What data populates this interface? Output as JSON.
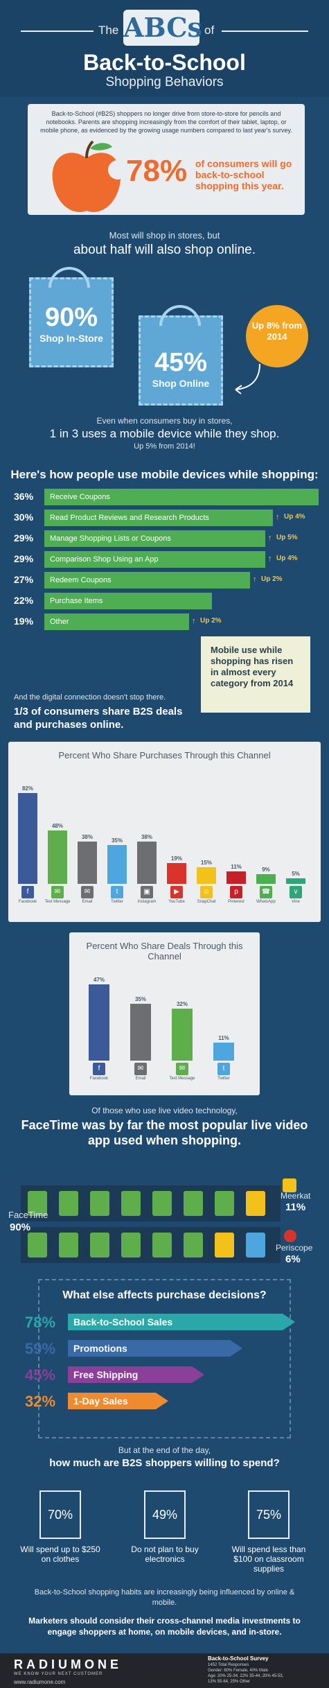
{
  "header": {
    "the": "The",
    "abcs": "ABCs",
    "of": "of",
    "title": "Back-to-School",
    "subtitle": "Shopping Behaviors"
  },
  "intro": {
    "text": "Back-to-School (#B2S) shoppers no longer drive from store-to-store for pencils and notebooks. Parents are shopping increasingly from the comfort of their tablet, laptop, or mobile phone, as evidenced by the growing usage numbers compared to last year's survey.",
    "stat": "78%",
    "stat_text": "of consumers will go back-to-school shopping this year."
  },
  "online": {
    "line1": "Most will shop in stores, but",
    "line2": "about half will also shop online.",
    "instore_pct": "90%",
    "instore_lbl": "Shop In-Store",
    "online_pct": "45%",
    "online_lbl": "Shop Online",
    "badge": "Up 8% from 2014"
  },
  "mobile_intro": {
    "line1": "Even when consumers buy in stores,",
    "line2": "1 in 3 uses a mobile device while they shop.",
    "line3": "Up 5% from 2014!"
  },
  "mobile_heading": "Here's how people use mobile devices while shopping:",
  "mobile_uses": [
    {
      "pct": "36%",
      "label": "Receive Coupons",
      "value": 36,
      "up": ""
    },
    {
      "pct": "30%",
      "label": "Read Product Reviews and Research Products",
      "value": 30,
      "up": "Up 4%"
    },
    {
      "pct": "29%",
      "label": "Manage Shopping Lists or Coupons",
      "value": 29,
      "up": "Up 5%"
    },
    {
      "pct": "29%",
      "label": "Comparison Shop Using an App",
      "value": 29,
      "up": "Up 4%"
    },
    {
      "pct": "27%",
      "label": "Redeem Coupons",
      "value": 27,
      "up": "Up 2%"
    },
    {
      "pct": "22%",
      "label": "Purchase Items",
      "value": 22,
      "up": ""
    },
    {
      "pct": "19%",
      "label": "Other",
      "value": 19,
      "up": "Up 2%"
    }
  ],
  "sticky": "Mobile use while shopping has risen in almost every category from 2014",
  "digital": {
    "line1": "And the digital connection doesn't stop there.",
    "line2": "1/3 of consumers share B2S deals and purchases online."
  },
  "chart_data": [
    {
      "type": "bar",
      "title": "Percent Who Share Purchases Through this Channel",
      "categories": [
        "Facebook",
        "Text Message",
        "Email",
        "Twitter",
        "Instagram",
        "YouTube",
        "SnapChat",
        "Pinterest",
        "WhatsApp",
        "Vine"
      ],
      "values": [
        82,
        48,
        38,
        35,
        38,
        19,
        15,
        11,
        9,
        5
      ],
      "labels": [
        "82%",
        "48%",
        "38%",
        "35%",
        "38%",
        "19%",
        "15%",
        "11%",
        "9%",
        "5%"
      ],
      "colors": [
        "#3b5a9a",
        "#5fae4c",
        "#6d6e71",
        "#4da7de",
        "#6d6e71",
        "#d9342b",
        "#f3c21a",
        "#c82027",
        "#4caf50",
        "#2fa57a"
      ],
      "ylim": [
        0,
        100
      ]
    },
    {
      "type": "bar",
      "title": "Percent Who Share Deals Through this Channel",
      "categories": [
        "Facebook",
        "Email",
        "Text Message",
        "Twitter"
      ],
      "values": [
        47,
        35,
        32,
        11
      ],
      "labels": [
        "47%",
        "35%",
        "32%",
        "11%"
      ],
      "colors": [
        "#3b5a9a",
        "#6d6e71",
        "#5fae4c",
        "#4da7de"
      ],
      "ylim": [
        0,
        60
      ]
    }
  ],
  "video": {
    "line1": "Of those who use live video technology,",
    "line2": "FaceTime was by far the most popular live video app used when shopping.",
    "facetime": "FaceTime",
    "facetime_pct": "90%",
    "facetime_value": 90,
    "meerkat": "Meerkat",
    "meerkat_pct": "11%",
    "meerkat_value": 11,
    "periscope": "Periscope",
    "periscope_pct": "6%",
    "periscope_value": 6
  },
  "decisions": {
    "heading": "What else affects purchase decisions?",
    "items": [
      {
        "pct": "78%",
        "label": "Back-to-School Sales",
        "value": 78,
        "color": "#2aa7a8"
      },
      {
        "pct": "59%",
        "label": "Promotions",
        "value": 59,
        "color": "#3a6aa6"
      },
      {
        "pct": "45%",
        "label": "Free Shipping",
        "value": 45,
        "color": "#8c3f98"
      },
      {
        "pct": "32%",
        "label": "1-Day Sales",
        "value": 32,
        "color": "#f08a2e"
      }
    ]
  },
  "spend": {
    "line1": "But at the end of the day,",
    "line2": "how much are B2S shoppers willing to spend?",
    "items": [
      {
        "pct": "70%",
        "text": "Will spend up to $250 on clothes"
      },
      {
        "pct": "49%",
        "text": "Do not plan to buy electronics"
      },
      {
        "pct": "75%",
        "text": "Will spend less than $100 on classroom supplies"
      }
    ]
  },
  "closing": {
    "line1": "Back-to-School shopping habits are increasingly being influenced by online & mobile.",
    "line2": "Marketers should consider their cross-channel media investments to engage shoppers at home, on mobile devices, and in-store."
  },
  "footer": {
    "logo": "RADIUMONE",
    "tagline": "WE KNOW YOUR NEXT CUSTOMER",
    "url": "www.radiumone.com",
    "survey": "Back-to-School Survey",
    "meta1": "1452 Total Responses",
    "meta2": "Gender: 60% Female, 40% Male",
    "meta3": "Age: 20% 25-34, 22% 35-44, 20% 45-53,",
    "meta4": "13% 55-64, 25% Other"
  },
  "colors": {
    "background": "#1e4a70",
    "accent_orange": "#ee6b2d",
    "accent_green": "#4fae54",
    "bag_blue": "#5fa8d6"
  }
}
